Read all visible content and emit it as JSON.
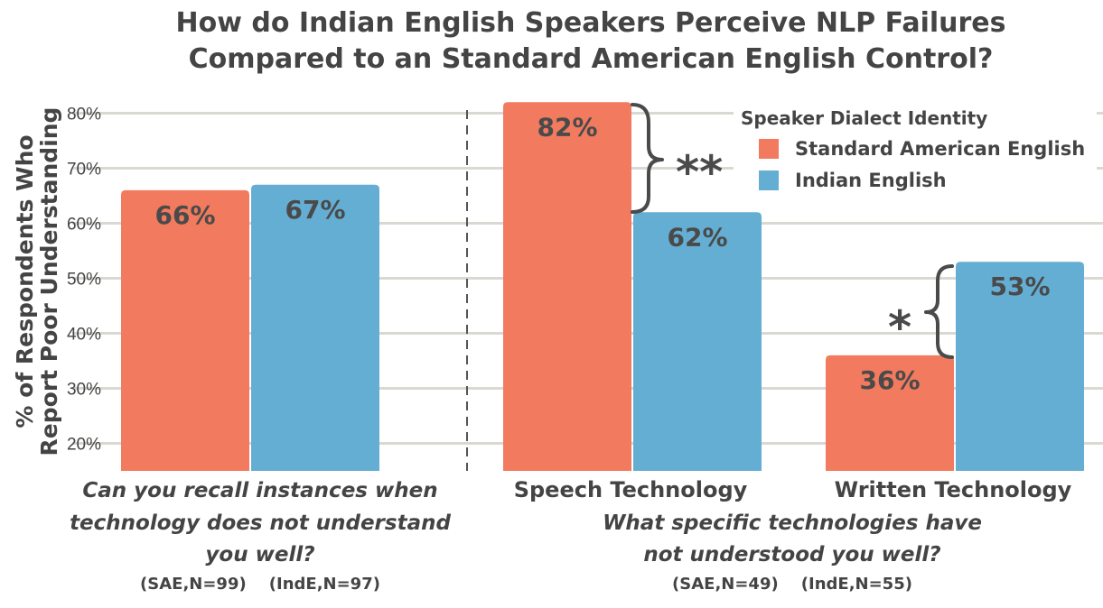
{
  "chart_data": {
    "type": "bar",
    "title_line1": "How do Indian English Speakers Perceive NLP Failures",
    "title_line2": "Compared to an Standard American English Control?",
    "ylabel_line1": "% of Respondents Who",
    "ylabel_line2": "Report Poor Understanding",
    "ylim": [
      15,
      83
    ],
    "yticks": [
      20,
      30,
      40,
      50,
      60,
      70,
      80
    ],
    "tick_suffix": "%",
    "grid": true,
    "legend_position": "top-right",
    "legend_title": "Speaker Dialect Identity",
    "categories": [
      "Can you recall instances when technology does not understand you well?",
      "Speech Technology",
      "Written Technology"
    ],
    "series": [
      {
        "name": "Standard American English",
        "color": "#f27a5e",
        "values": [
          66,
          82,
          36
        ],
        "labels": [
          "66%",
          "82%",
          "36%"
        ]
      },
      {
        "name": "Indian English",
        "color": "#64aed4",
        "values": [
          67,
          62,
          53
        ],
        "labels": [
          "67%",
          "62%",
          "53%"
        ]
      }
    ],
    "significance": [
      "",
      "**",
      "*"
    ],
    "left_question": [
      "Can you recall instances when",
      "technology does not understand",
      "you well?"
    ],
    "left_counts": "(SAE,N=99)    (IndE,N=97)",
    "speech_label": "Speech Technology",
    "written_label": "Written Technology",
    "right_question": [
      "What specific technologies have",
      "not understood you well?"
    ],
    "right_counts": "(SAE,N=49)    (IndE,N=55)"
  }
}
